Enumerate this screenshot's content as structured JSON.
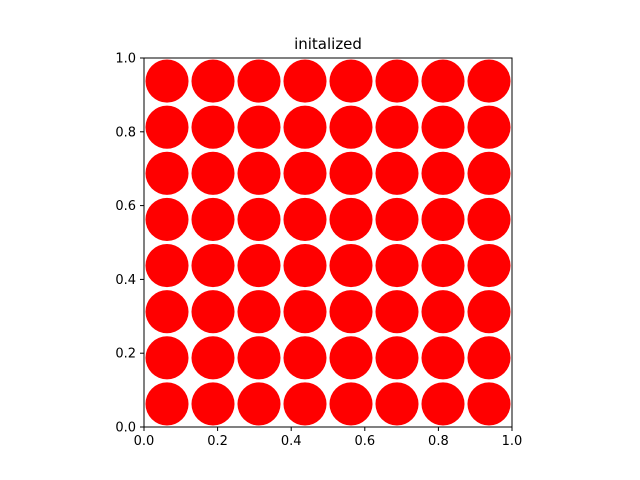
{
  "chart_data": {
    "type": "scatter",
    "title": "initalized",
    "xlabel": "",
    "ylabel": "",
    "xlim": [
      0,
      1
    ],
    "ylim": [
      0,
      1
    ],
    "grid": false,
    "marker": "circle",
    "marker_radius": 0.0585,
    "color": "#ff0000",
    "x_ticks": [
      {
        "value": 0.0,
        "label": "0.0"
      },
      {
        "value": 0.2,
        "label": "0.2"
      },
      {
        "value": 0.4,
        "label": "0.4"
      },
      {
        "value": 0.6,
        "label": "0.6"
      },
      {
        "value": 0.8,
        "label": "0.8"
      },
      {
        "value": 1.0,
        "label": "1.0"
      }
    ],
    "y_ticks": [
      {
        "value": 0.0,
        "label": "0.0"
      },
      {
        "value": 0.2,
        "label": "0.2"
      },
      {
        "value": 0.4,
        "label": "0.4"
      },
      {
        "value": 0.6,
        "label": "0.6"
      },
      {
        "value": 0.8,
        "label": "0.8"
      },
      {
        "value": 1.0,
        "label": "1.0"
      }
    ],
    "points": [
      {
        "x": 0.0625,
        "y": 0.9375
      },
      {
        "x": 0.1875,
        "y": 0.9375
      },
      {
        "x": 0.3125,
        "y": 0.9375
      },
      {
        "x": 0.4375,
        "y": 0.9375
      },
      {
        "x": 0.5625,
        "y": 0.9375
      },
      {
        "x": 0.6875,
        "y": 0.9375
      },
      {
        "x": 0.8125,
        "y": 0.9375
      },
      {
        "x": 0.9375,
        "y": 0.9375
      },
      {
        "x": 0.0625,
        "y": 0.8125
      },
      {
        "x": 0.1875,
        "y": 0.8125
      },
      {
        "x": 0.3125,
        "y": 0.8125
      },
      {
        "x": 0.4375,
        "y": 0.8125
      },
      {
        "x": 0.5625,
        "y": 0.8125
      },
      {
        "x": 0.6875,
        "y": 0.8125
      },
      {
        "x": 0.8125,
        "y": 0.8125
      },
      {
        "x": 0.9375,
        "y": 0.8125
      },
      {
        "x": 0.0625,
        "y": 0.6875
      },
      {
        "x": 0.1875,
        "y": 0.6875
      },
      {
        "x": 0.3125,
        "y": 0.6875
      },
      {
        "x": 0.4375,
        "y": 0.6875
      },
      {
        "x": 0.5625,
        "y": 0.6875
      },
      {
        "x": 0.6875,
        "y": 0.6875
      },
      {
        "x": 0.8125,
        "y": 0.6875
      },
      {
        "x": 0.9375,
        "y": 0.6875
      },
      {
        "x": 0.0625,
        "y": 0.5625
      },
      {
        "x": 0.1875,
        "y": 0.5625
      },
      {
        "x": 0.3125,
        "y": 0.5625
      },
      {
        "x": 0.4375,
        "y": 0.5625
      },
      {
        "x": 0.5625,
        "y": 0.5625
      },
      {
        "x": 0.6875,
        "y": 0.5625
      },
      {
        "x": 0.8125,
        "y": 0.5625
      },
      {
        "x": 0.9375,
        "y": 0.5625
      },
      {
        "x": 0.0625,
        "y": 0.4375
      },
      {
        "x": 0.1875,
        "y": 0.4375
      },
      {
        "x": 0.3125,
        "y": 0.4375
      },
      {
        "x": 0.4375,
        "y": 0.4375
      },
      {
        "x": 0.5625,
        "y": 0.4375
      },
      {
        "x": 0.6875,
        "y": 0.4375
      },
      {
        "x": 0.8125,
        "y": 0.4375
      },
      {
        "x": 0.9375,
        "y": 0.4375
      },
      {
        "x": 0.0625,
        "y": 0.3125
      },
      {
        "x": 0.1875,
        "y": 0.3125
      },
      {
        "x": 0.3125,
        "y": 0.3125
      },
      {
        "x": 0.4375,
        "y": 0.3125
      },
      {
        "x": 0.5625,
        "y": 0.3125
      },
      {
        "x": 0.6875,
        "y": 0.3125
      },
      {
        "x": 0.8125,
        "y": 0.3125
      },
      {
        "x": 0.9375,
        "y": 0.3125
      },
      {
        "x": 0.0625,
        "y": 0.1875
      },
      {
        "x": 0.1875,
        "y": 0.1875
      },
      {
        "x": 0.3125,
        "y": 0.1875
      },
      {
        "x": 0.4375,
        "y": 0.1875
      },
      {
        "x": 0.5625,
        "y": 0.1875
      },
      {
        "x": 0.6875,
        "y": 0.1875
      },
      {
        "x": 0.8125,
        "y": 0.1875
      },
      {
        "x": 0.9375,
        "y": 0.1875
      },
      {
        "x": 0.0625,
        "y": 0.0625
      },
      {
        "x": 0.1875,
        "y": 0.0625
      },
      {
        "x": 0.3125,
        "y": 0.0625
      },
      {
        "x": 0.4375,
        "y": 0.0625
      },
      {
        "x": 0.5625,
        "y": 0.0625
      },
      {
        "x": 0.6875,
        "y": 0.0625
      },
      {
        "x": 0.8125,
        "y": 0.0625
      },
      {
        "x": 0.9375,
        "y": 0.0625
      }
    ]
  }
}
